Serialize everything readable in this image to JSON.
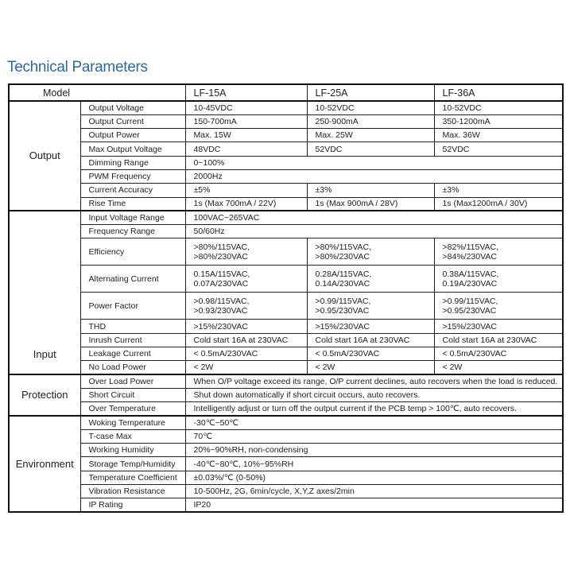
{
  "title": "Technical Parameters",
  "header": {
    "label": "Model",
    "models": [
      "LF-15A",
      "LF-25A",
      "LF-36A"
    ]
  },
  "sections": [
    {
      "name": "Output",
      "rows": [
        {
          "param": "Output Voltage",
          "values": [
            "10-45VDC",
            "10-52VDC",
            "10-52VDC"
          ]
        },
        {
          "param": "Output Current",
          "values": [
            "150-700mA",
            "250-900mA",
            "350-1200mA"
          ]
        },
        {
          "param": "Output Power",
          "values": [
            "Max. 15W",
            "Max. 25W",
            "Max. 36W"
          ]
        },
        {
          "param": "Max Output Voltage",
          "values": [
            "48VDC",
            "52VDC",
            "52VDC"
          ]
        },
        {
          "param": "Dimming Range",
          "value": "0~100%"
        },
        {
          "param": "PWM Frequency",
          "value": "2000Hz"
        },
        {
          "param": "Current Accuracy",
          "values": [
            "±5%",
            "±3%",
            "±3%"
          ]
        },
        {
          "param": "Rise Time",
          "values": [
            "1s (Max 700mA / 22V)",
            "1s (Max 900mA / 28V)",
            "1s (Max1200mA / 30V)"
          ]
        }
      ]
    },
    {
      "name": "Input",
      "rows": [
        {
          "param": "Input Voltage Range",
          "value": "100VAC~265VAC"
        },
        {
          "param": "Frequency Range",
          "value": "50/60Hz"
        },
        {
          "param": "Efficiency",
          "values": [
            ">80%/115VAC,\n>80%/230VAC",
            ">80%/115VAC,\n>80%/230VAC",
            ">82%/115VAC,\n>84%/230VAC"
          ]
        },
        {
          "param": "Alternating Current",
          "values": [
            "0.15A/115VAC,\n0.07A/230VAC",
            "0.28A/115VAC,\n0.14A/230VAC",
            "0.38A/115VAC,\n0.19A/230VAC"
          ]
        },
        {
          "param": "Power Factor",
          "values": [
            ">0.98/115VAC,\n>0.93/230VAC",
            ">0.99/115VAC,\n>0.95/230VAC",
            ">0.99/115VAC,\n>0.95/230VAC"
          ]
        },
        {
          "param": "THD",
          "values": [
            ">15%/230VAC",
            ">15%/230VAC",
            ">15%/230VAC"
          ]
        },
        {
          "param": "Inrush Current",
          "values": [
            "Cold start 16A at 230VAC",
            "Cold start 16A at 230VAC",
            "Cold start 16A at 230VAC"
          ]
        },
        {
          "param": "Leakage Current",
          "values": [
            "< 0.5mA/230VAC",
            "< 0.5mA/230VAC",
            "< 0.5mA/230VAC"
          ]
        },
        {
          "param": "No Load Power",
          "values": [
            "< 2W",
            "< 2W",
            "< 2W"
          ]
        }
      ]
    },
    {
      "name": "Protection",
      "rows": [
        {
          "param": "Over Load Power",
          "value": "When O/P voltage exceed its range, O/P current declines, auto recovers when the load is reduced."
        },
        {
          "param": "Short Circuit",
          "value": "Shut down automatically if short circuit occurs, auto recovers."
        },
        {
          "param": "Over Temperature",
          "value": "Intelligently adjust or turn off the output current if the PCB temp > 100℃, auto recovers."
        }
      ]
    },
    {
      "name": "Environment",
      "rows": [
        {
          "param": "Woking Temperature",
          "value": "-30℃~50℃"
        },
        {
          "param": "T-case Max",
          "value": "70℃"
        },
        {
          "param": "Working Humidity",
          "value": "20%~90%RH, non-condensing"
        },
        {
          "param": "Storage Temp/Humidity",
          "value": "-40℃~80℃, 10%~95%RH"
        },
        {
          "param": "Temperature Coefficient",
          "value": "±0.03%/℃ (0-50%)"
        },
        {
          "param": "Vibration Resistance",
          "value": "10-500Hz, 2G, 6min/cycle,  X,Y,Z axes/2min"
        },
        {
          "param": "IP Rating",
          "value": "IP20"
        }
      ]
    }
  ]
}
